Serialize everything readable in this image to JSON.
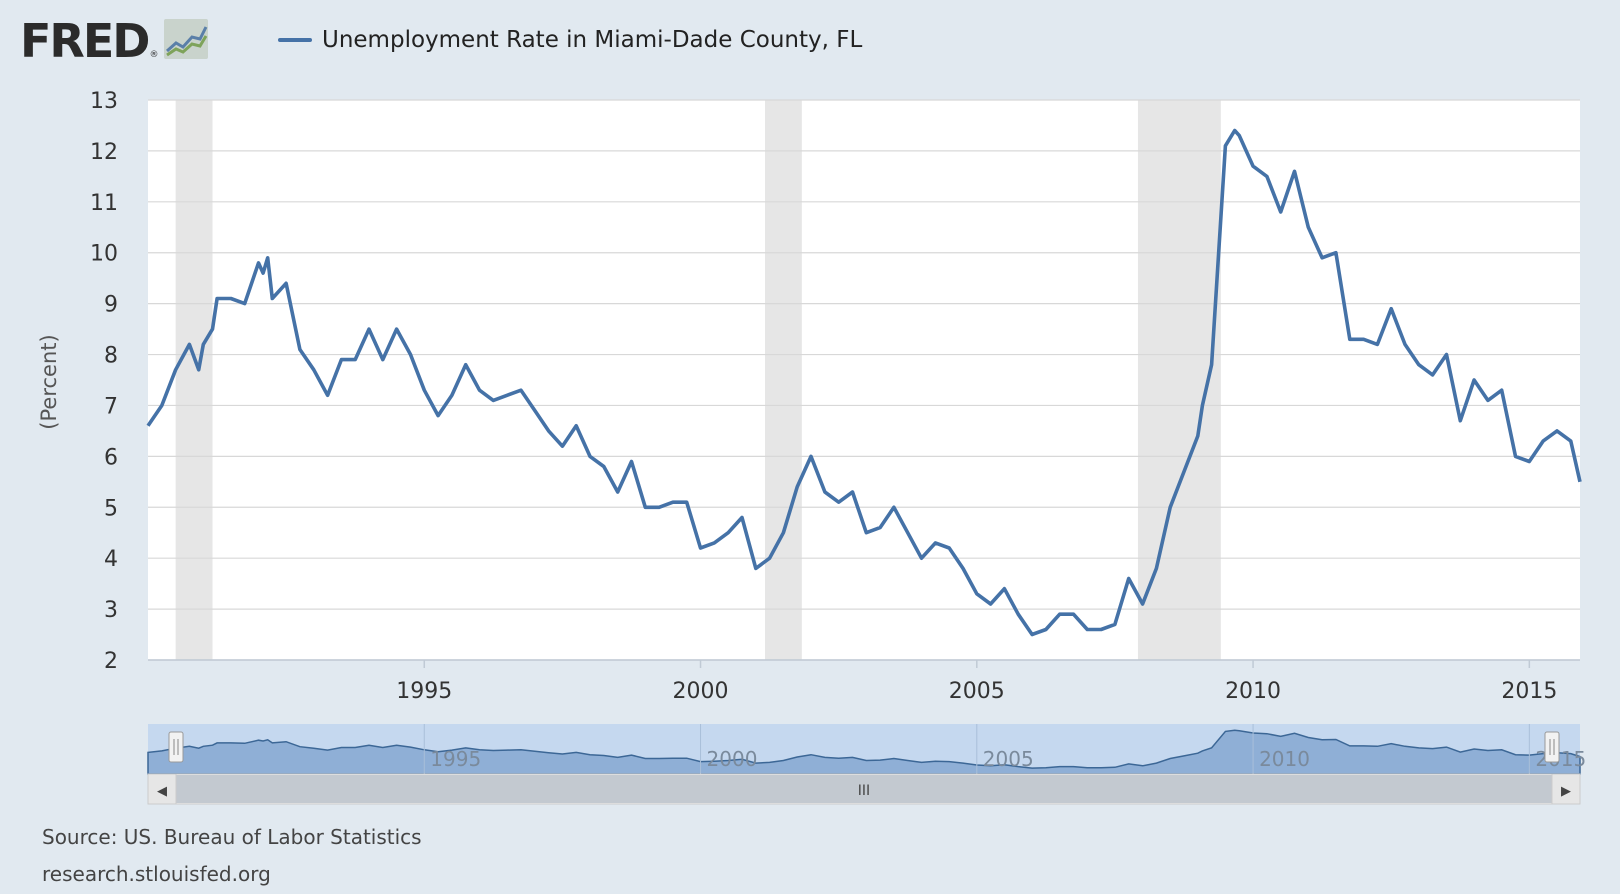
{
  "header": {
    "logo_text": "FRED",
    "logo_reg": "®",
    "legend_label": "Unemployment Rate in Miami-Dade County, FL",
    "series_color": "#4572a7"
  },
  "footer": {
    "source": "Source: US. Bureau of Labor Statistics",
    "site": "research.stlouisfed.org"
  },
  "navigator": {
    "handle_label": "III",
    "left_arrow": "◀",
    "right_arrow": "▶"
  },
  "chart_data": {
    "type": "line",
    "ylabel": "(Percent)",
    "xlim": [
      1990.0,
      2015.917
    ],
    "ylim": [
      2,
      13
    ],
    "yticks": [
      2,
      3,
      4,
      5,
      6,
      7,
      8,
      9,
      10,
      11,
      12,
      13
    ],
    "xticks": [
      1995,
      2000,
      2005,
      2010,
      2015
    ],
    "grid": true,
    "recessions": [
      [
        1990.5,
        1991.167
      ],
      [
        2001.167,
        2001.833
      ],
      [
        2007.917,
        2009.417
      ]
    ],
    "series": [
      {
        "name": "Unemployment Rate in Miami-Dade County, FL",
        "x": [
          1990.0,
          1990.25,
          1990.5,
          1990.75,
          1990.917,
          1991.0,
          1991.167,
          1991.25,
          1991.5,
          1991.75,
          1992.0,
          1992.083,
          1992.167,
          1992.25,
          1992.5,
          1992.75,
          1993.0,
          1993.25,
          1993.5,
          1993.75,
          1994.0,
          1994.25,
          1994.5,
          1994.75,
          1995.0,
          1995.25,
          1995.5,
          1995.75,
          1996.0,
          1996.25,
          1996.5,
          1996.75,
          1997.0,
          1997.25,
          1997.5,
          1997.75,
          1998.0,
          1998.25,
          1998.5,
          1998.75,
          1999.0,
          1999.25,
          1999.5,
          1999.75,
          2000.0,
          2000.25,
          2000.5,
          2000.75,
          2001.0,
          2001.25,
          2001.5,
          2001.75,
          2002.0,
          2002.25,
          2002.5,
          2002.75,
          2003.0,
          2003.25,
          2003.5,
          2003.75,
          2004.0,
          2004.25,
          2004.5,
          2004.75,
          2005.0,
          2005.25,
          2005.5,
          2005.75,
          2006.0,
          2006.25,
          2006.5,
          2006.75,
          2007.0,
          2007.25,
          2007.5,
          2007.75,
          2008.0,
          2008.25,
          2008.5,
          2008.75,
          2009.0,
          2009.083,
          2009.25,
          2009.5,
          2009.667,
          2009.75,
          2010.0,
          2010.25,
          2010.5,
          2010.75,
          2011.0,
          2011.25,
          2011.5,
          2011.75,
          2012.0,
          2012.25,
          2012.5,
          2012.75,
          2013.0,
          2013.25,
          2013.5,
          2013.75,
          2014.0,
          2014.25,
          2014.5,
          2014.75,
          2015.0,
          2015.25,
          2015.5,
          2015.75,
          2015.917
        ],
        "values": [
          6.6,
          7.0,
          7.7,
          8.2,
          7.7,
          8.2,
          8.5,
          9.1,
          9.1,
          9.0,
          9.8,
          9.6,
          9.9,
          9.1,
          9.4,
          8.1,
          7.7,
          7.2,
          7.9,
          7.9,
          8.5,
          7.9,
          8.5,
          8.0,
          7.3,
          6.8,
          7.2,
          7.8,
          7.3,
          7.1,
          7.2,
          7.3,
          6.9,
          6.5,
          6.2,
          6.6,
          6.0,
          5.8,
          5.3,
          5.9,
          5.0,
          5.0,
          5.1,
          5.1,
          4.2,
          4.3,
          4.5,
          4.8,
          3.8,
          4.0,
          4.5,
          5.4,
          6.0,
          5.3,
          5.1,
          5.3,
          4.5,
          4.6,
          5.0,
          4.5,
          4.0,
          4.3,
          4.2,
          3.8,
          3.3,
          3.1,
          3.4,
          2.9,
          2.5,
          2.6,
          2.9,
          2.9,
          2.6,
          2.6,
          2.7,
          3.6,
          3.1,
          3.8,
          5.0,
          5.7,
          6.4,
          7.0,
          7.8,
          12.1,
          12.4,
          12.3,
          11.7,
          11.5,
          10.8,
          11.6,
          10.5,
          9.9,
          10.0,
          8.3,
          8.3,
          8.2,
          8.9,
          8.2,
          7.8,
          7.6,
          8.0,
          6.7,
          7.5,
          7.1,
          7.3,
          6.0,
          5.9,
          6.3,
          6.5,
          6.3,
          5.5
        ]
      }
    ]
  }
}
